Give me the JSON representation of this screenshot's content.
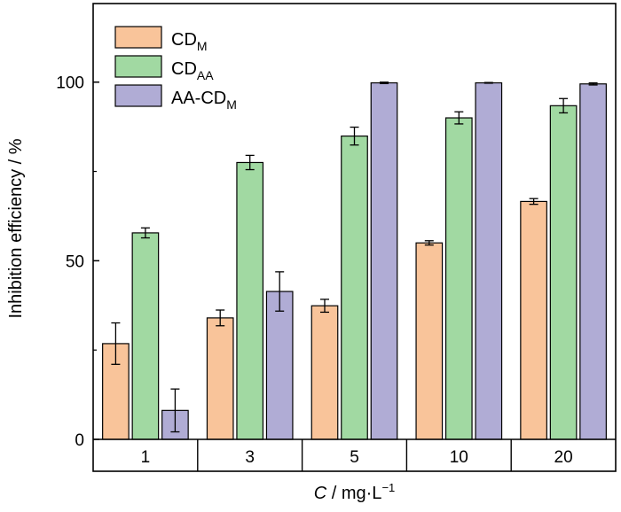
{
  "chart_data": {
    "type": "bar",
    "xlabel": {
      "italic": "C",
      "rest": " / mg·L",
      "sup": "−1"
    },
    "ylabel": "Inhibition efficiency / %",
    "ylim": [
      0,
      122
    ],
    "yticks": [
      0,
      50,
      100
    ],
    "categories": [
      "1",
      "3",
      "5",
      "10",
      "20"
    ],
    "series": [
      {
        "name": "CD_M",
        "label_base": "CD",
        "label_sub": "M",
        "color": "#f9c49a",
        "values": [
          26.8,
          34.0,
          37.4,
          55.0,
          66.6
        ],
        "errors": [
          5.8,
          2.2,
          1.8,
          0.6,
          0.8
        ]
      },
      {
        "name": "CD_AA",
        "label_base": "CD",
        "label_sub": "AA",
        "color": "#a1d9a2",
        "values": [
          57.8,
          77.5,
          84.9,
          90.0,
          93.4
        ],
        "errors": [
          1.4,
          2.0,
          2.5,
          1.7,
          2.0
        ]
      },
      {
        "name": "AA-CD_M",
        "label_base": "AA-CD",
        "label_sub": "M",
        "color": "#b0acd5",
        "values": [
          8.1,
          41.4,
          99.8,
          99.8,
          99.5
        ],
        "errors": [
          6.0,
          5.5,
          0.2,
          0.1,
          0.3
        ]
      }
    ],
    "grid": false,
    "legend": "top-left"
  }
}
